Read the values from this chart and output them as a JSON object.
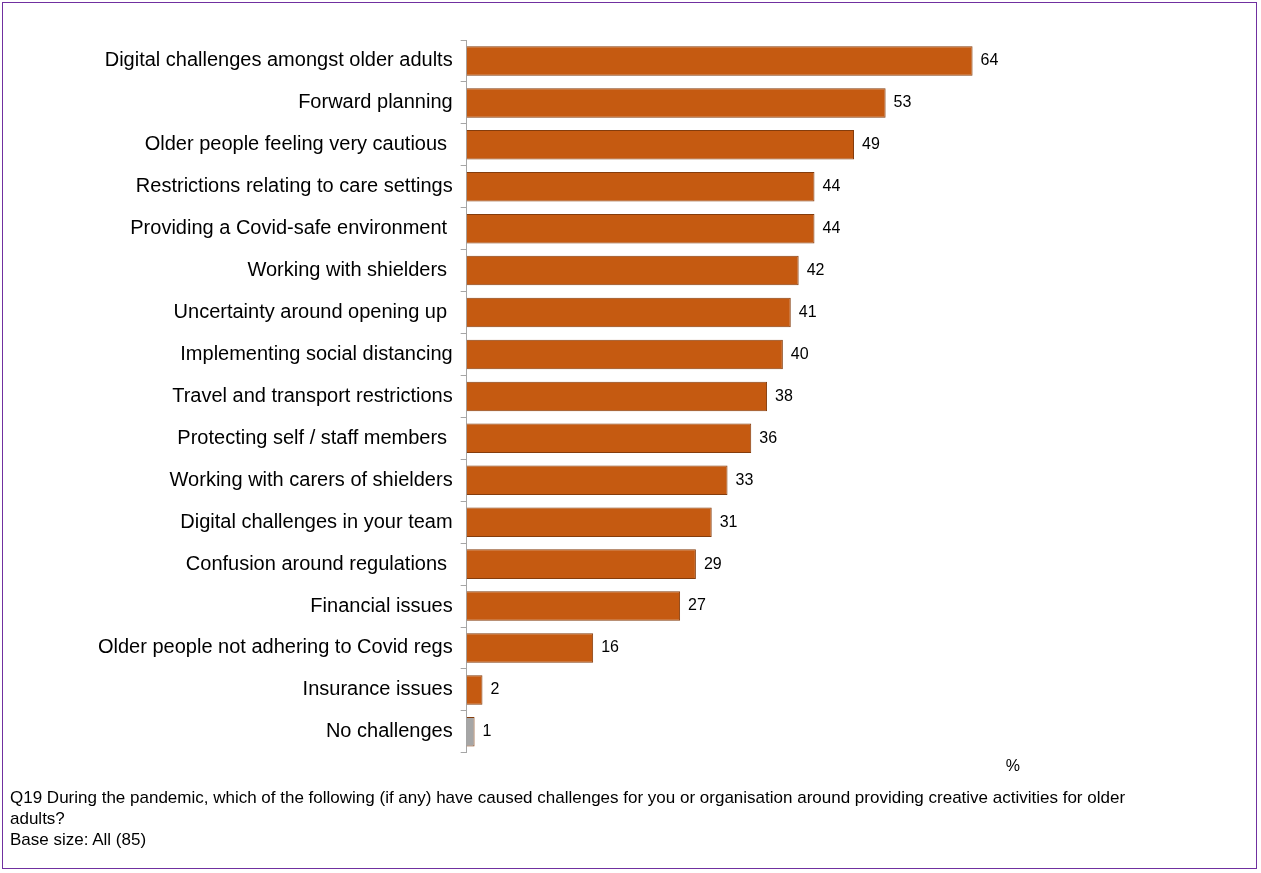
{
  "chart_data": {
    "type": "bar",
    "orientation": "horizontal",
    "categories": [
      "Digital challenges amongst older adults",
      "Forward planning",
      "Older people feeling very cautious ",
      "Restrictions relating to care settings",
      "Providing a Covid-safe environment ",
      "Working with shielders ",
      "Uncertainty around opening up ",
      "Implementing social distancing",
      "Travel and transport restrictions",
      "Protecting self / staff members ",
      "Working with carers of shielders",
      "Digital challenges in your team",
      "Confusion around regulations ",
      "Financial issues",
      "Older people not adhering to Covid regs",
      "Insurance issues",
      "No challenges"
    ],
    "values": [
      64,
      53,
      49,
      44,
      44,
      42,
      41,
      40,
      38,
      36,
      33,
      31,
      29,
      27,
      16,
      2,
      1
    ],
    "colors": [
      "#c55a11",
      "#c55a11",
      "#c55a11",
      "#c55a11",
      "#c55a11",
      "#c55a11",
      "#c55a11",
      "#c55a11",
      "#c55a11",
      "#c55a11",
      "#c55a11",
      "#c55a11",
      "#c55a11",
      "#c55a11",
      "#c55a11",
      "#c55a11",
      "#a6a6a6"
    ],
    "data_labels": true,
    "tick_labels": "y",
    "xlabel": "%",
    "annotations": [
      "Q19 During the pandemic, which of the following (if any) have caused challenges for you or organisation around providing creative activities for older adults?",
      "Base size: All (85)"
    ]
  }
}
